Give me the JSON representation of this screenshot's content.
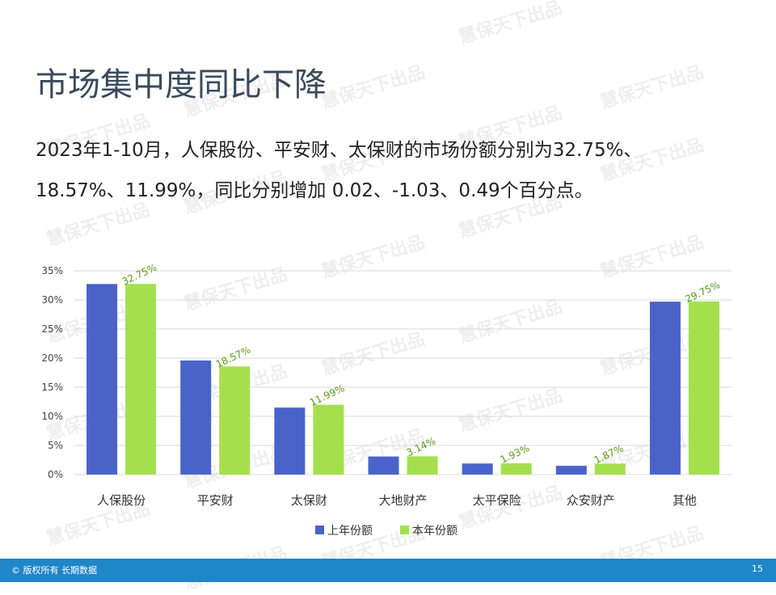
{
  "title": "市场集中度同比下降",
  "description": {
    "line1": "2023年1-10月，人保股份、平安财、太保财的市场份额分别为32.75%、",
    "line2": "18.57%、11.99%，同比分别增加 0.02、-1.03、0.49个百分点。"
  },
  "watermark_text": "慧保天下出品",
  "footer": {
    "left": "© 版权所有 长期数据",
    "page_number": "15"
  },
  "colors": {
    "series_prev": "#4a63c9",
    "series_curr": "#a4e04e",
    "label_text": "#5a9a1a",
    "footer_bg": "#1f86c8"
  },
  "chart_data": {
    "type": "bar",
    "categories": [
      "人保股份",
      "平安财",
      "太保财",
      "大地财产",
      "太平保险",
      "众安财产",
      "其他"
    ],
    "series": [
      {
        "name": "上年份额",
        "values": [
          32.73,
          19.6,
          11.5,
          3.1,
          1.9,
          1.5,
          29.7
        ]
      },
      {
        "name": "本年份额",
        "values": [
          32.75,
          18.57,
          11.99,
          3.14,
          1.93,
          1.87,
          29.75
        ],
        "labels": [
          "32.75%",
          "18.57%",
          "11.99%",
          "3.14%",
          "1.93%",
          "1.87%",
          "29.75%"
        ]
      }
    ],
    "yticks": [
      "0%",
      "5%",
      "10%",
      "15%",
      "20%",
      "25%",
      "30%",
      "35%"
    ],
    "ylim": [
      0,
      35
    ],
    "grid": true,
    "legend_position": "bottom"
  }
}
